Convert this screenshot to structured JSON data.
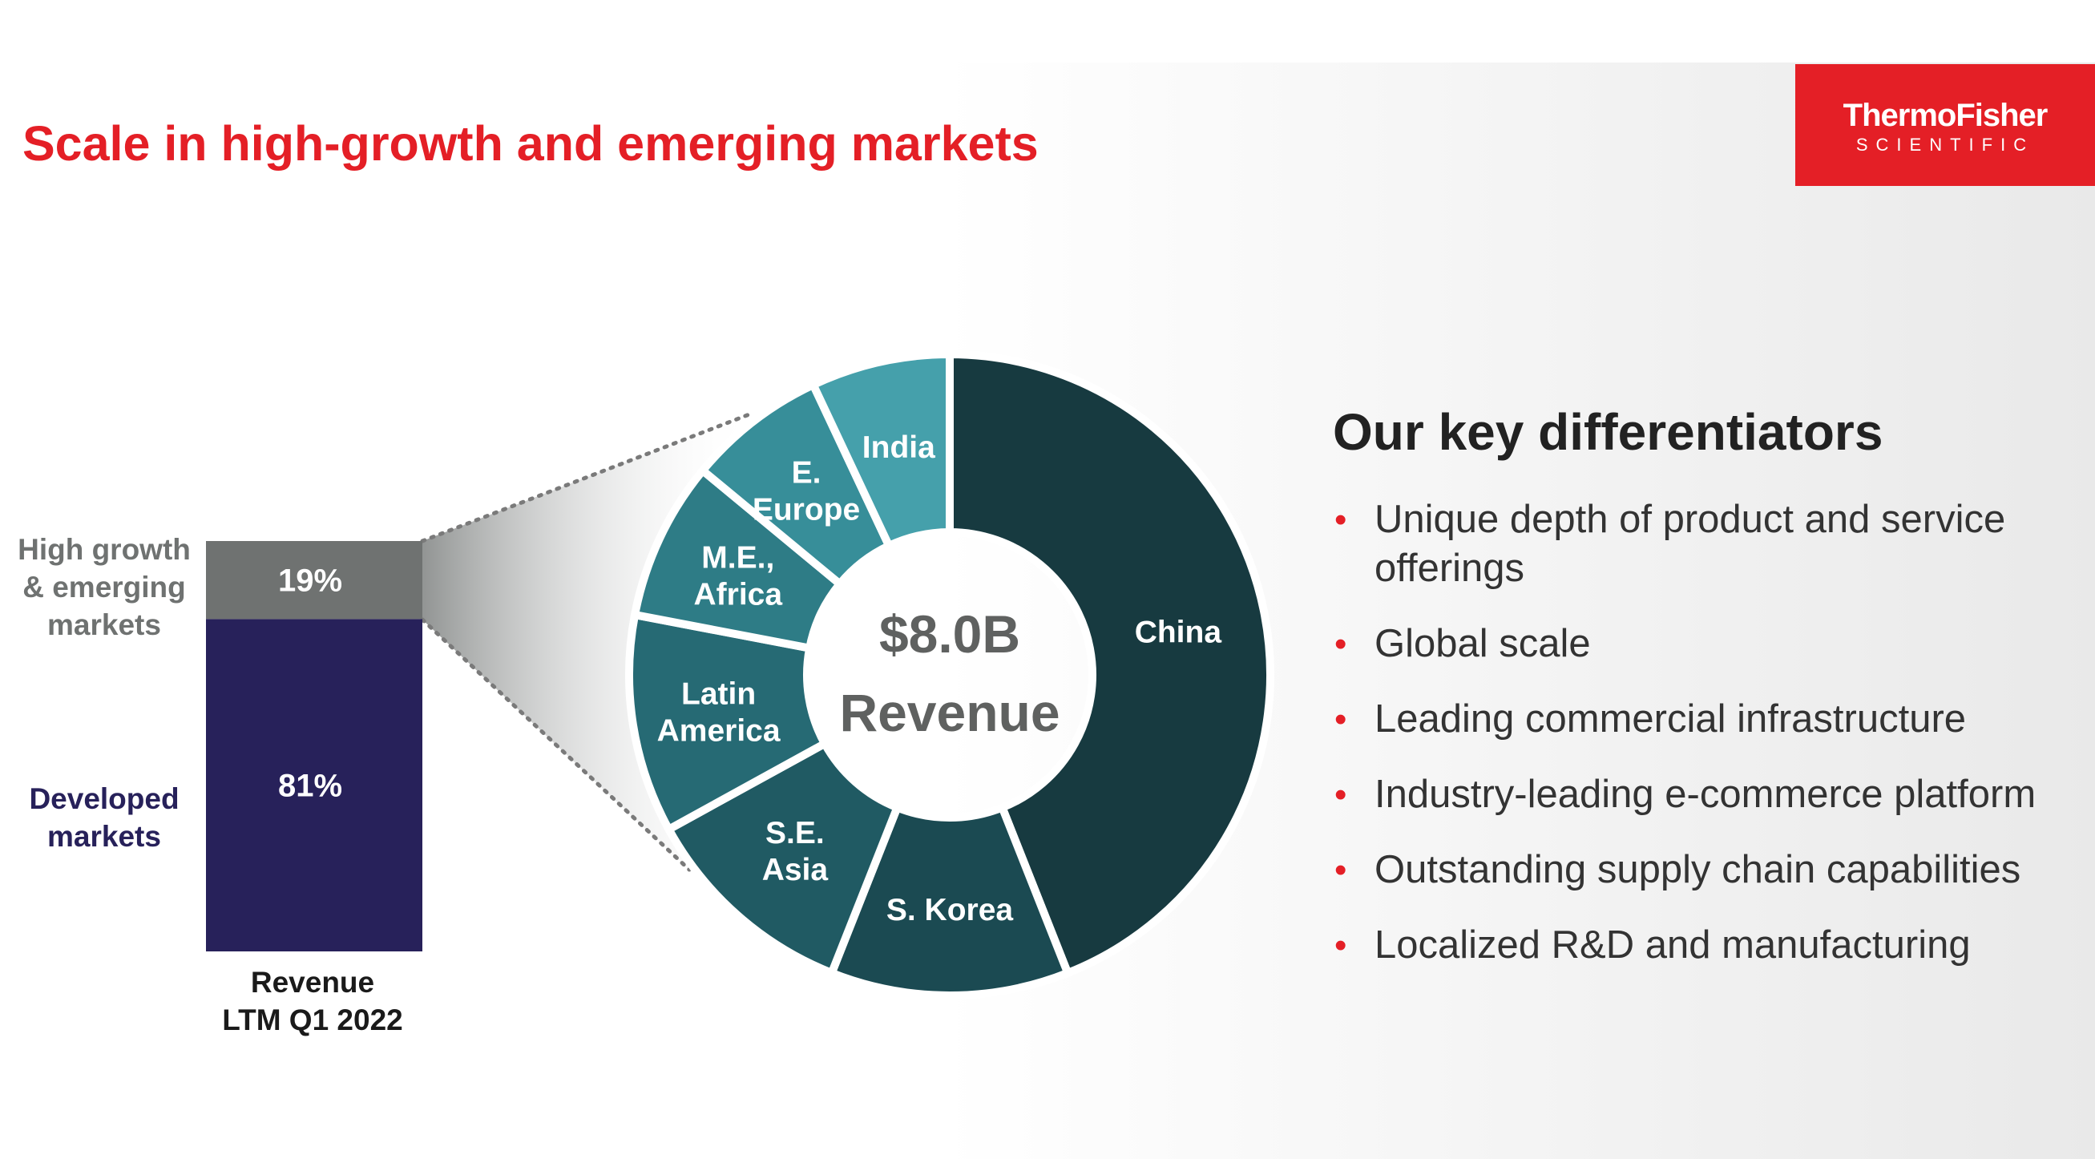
{
  "slide": {
    "title": "Scale in high-growth and emerging markets",
    "logo": {
      "line1": "ThermoFisher",
      "line2": "SCIENTIFIC"
    },
    "colors": {
      "brand_red": "#e41f26",
      "developed": "#27215a",
      "emerging": "#6f7271",
      "china": "#173a40",
      "s_korea": "#1b4a52",
      "se_asia": "#205a63",
      "latin_america": "#266a74",
      "me_africa": "#2e7c86",
      "e_europe": "#378e99",
      "india": "#45a0ab"
    }
  },
  "bar_labels": {
    "top_left": "High growth & emerging markets",
    "bottom_left": "Developed markets",
    "x_label_line1": "Revenue",
    "x_label_line2": "LTM Q1 2022"
  },
  "donut_center": {
    "value": "$8.0B",
    "label": "Revenue"
  },
  "differentiators": {
    "title": "Our key differentiators",
    "items": [
      "Unique depth of product and service offerings",
      "Global scale",
      "Leading commercial infrastructure",
      "Industry-leading e-commerce platform",
      "Outstanding supply chain capabilities",
      "Localized R&D and manufacturing"
    ]
  },
  "chart_data": [
    {
      "type": "bar",
      "stacked": true,
      "categories": [
        "Revenue LTM Q1 2022"
      ],
      "series": [
        {
          "name": "Developed markets",
          "values": [
            81
          ],
          "label": "81%"
        },
        {
          "name": "High growth & emerging markets",
          "values": [
            19
          ],
          "label": "19%"
        }
      ],
      "ylim": [
        0,
        100
      ]
    },
    {
      "type": "pie",
      "donut": true,
      "center_text": [
        "$8.0B",
        "Revenue"
      ],
      "slices": [
        {
          "label": "China",
          "value": 44
        },
        {
          "label": "S. Korea",
          "value": 12
        },
        {
          "label": "S.E. Asia",
          "value": 11
        },
        {
          "label": "Latin America",
          "value": 11
        },
        {
          "label": "M.E., Africa",
          "value": 8
        },
        {
          "label": "E. Europe",
          "value": 7
        },
        {
          "label": "India",
          "value": 7
        }
      ]
    }
  ]
}
